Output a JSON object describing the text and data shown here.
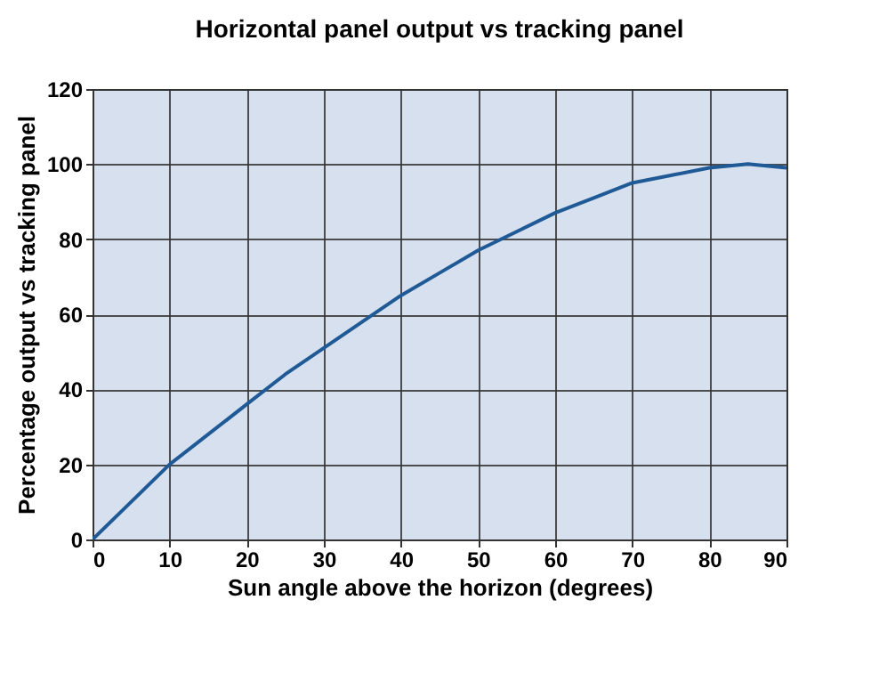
{
  "chart_data": {
    "type": "line",
    "title": "Horizontal panel output vs tracking panel",
    "xlabel": "Sun angle above the horizon (degrees)",
    "ylabel": "Percentage output vs tracking panel",
    "x": [
      0,
      5,
      10,
      15,
      20,
      25,
      30,
      35,
      40,
      45,
      50,
      55,
      60,
      65,
      70,
      75,
      80,
      85,
      90
    ],
    "series": [
      {
        "color": "#1f5a96",
        "values": [
          0,
          10,
          20,
          28,
          36,
          44,
          51,
          58,
          65,
          71,
          77,
          82,
          87,
          91,
          95,
          97,
          99,
          100,
          99
        ]
      }
    ],
    "xlim": [
      0,
      90
    ],
    "ylim": [
      0,
      120
    ],
    "xticks": [
      0,
      10,
      20,
      30,
      40,
      50,
      60,
      70,
      80,
      90
    ],
    "yticks": [
      0,
      20,
      40,
      60,
      80,
      100,
      120
    ],
    "grid": true,
    "marker": "none",
    "line_style": "solid"
  }
}
